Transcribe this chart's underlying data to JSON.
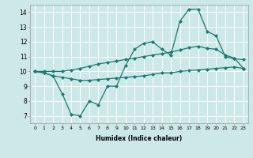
{
  "xlabel": "Humidex (Indice chaleur)",
  "background_color": "#cde8e8",
  "grid_color": "#ffffff",
  "line_color": "#1a7a6e",
  "xlim": [
    -0.5,
    23.5
  ],
  "ylim": [
    6.5,
    14.5
  ],
  "yticks": [
    7,
    8,
    9,
    10,
    11,
    12,
    13,
    14
  ],
  "xticks": [
    0,
    1,
    2,
    3,
    4,
    5,
    6,
    7,
    8,
    9,
    10,
    11,
    12,
    13,
    14,
    15,
    16,
    17,
    18,
    19,
    20,
    21,
    22,
    23
  ],
  "series1_x": [
    0,
    1,
    2,
    3,
    4,
    5,
    6,
    7,
    8,
    9,
    10,
    11,
    12,
    13,
    14,
    15,
    16,
    17,
    18,
    19,
    20,
    21,
    22,
    23
  ],
  "series1_y": [
    10.0,
    9.9,
    9.7,
    8.5,
    7.1,
    7.0,
    8.0,
    7.75,
    9.0,
    9.0,
    10.4,
    11.5,
    11.9,
    12.0,
    11.5,
    11.1,
    13.4,
    14.2,
    14.2,
    12.7,
    12.4,
    11.0,
    10.85,
    10.8
  ],
  "series2_x": [
    0,
    1,
    2,
    3,
    4,
    5,
    6,
    7,
    8,
    9,
    10,
    11,
    12,
    13,
    14,
    15,
    16,
    17,
    18,
    19,
    20,
    21,
    22,
    23
  ],
  "series2_y": [
    10.0,
    10.0,
    10.0,
    10.0,
    10.1,
    10.2,
    10.35,
    10.5,
    10.6,
    10.7,
    10.8,
    10.9,
    11.0,
    11.1,
    11.2,
    11.3,
    11.45,
    11.6,
    11.7,
    11.55,
    11.5,
    11.1,
    10.9,
    10.2
  ],
  "series3_x": [
    0,
    1,
    2,
    3,
    4,
    5,
    6,
    7,
    8,
    9,
    10,
    11,
    12,
    13,
    14,
    15,
    16,
    17,
    18,
    19,
    20,
    21,
    22,
    23
  ],
  "series3_y": [
    10.0,
    9.9,
    9.7,
    9.6,
    9.5,
    9.4,
    9.4,
    9.45,
    9.5,
    9.55,
    9.6,
    9.65,
    9.7,
    9.8,
    9.9,
    9.9,
    10.0,
    10.05,
    10.1,
    10.15,
    10.2,
    10.25,
    10.3,
    10.2
  ]
}
